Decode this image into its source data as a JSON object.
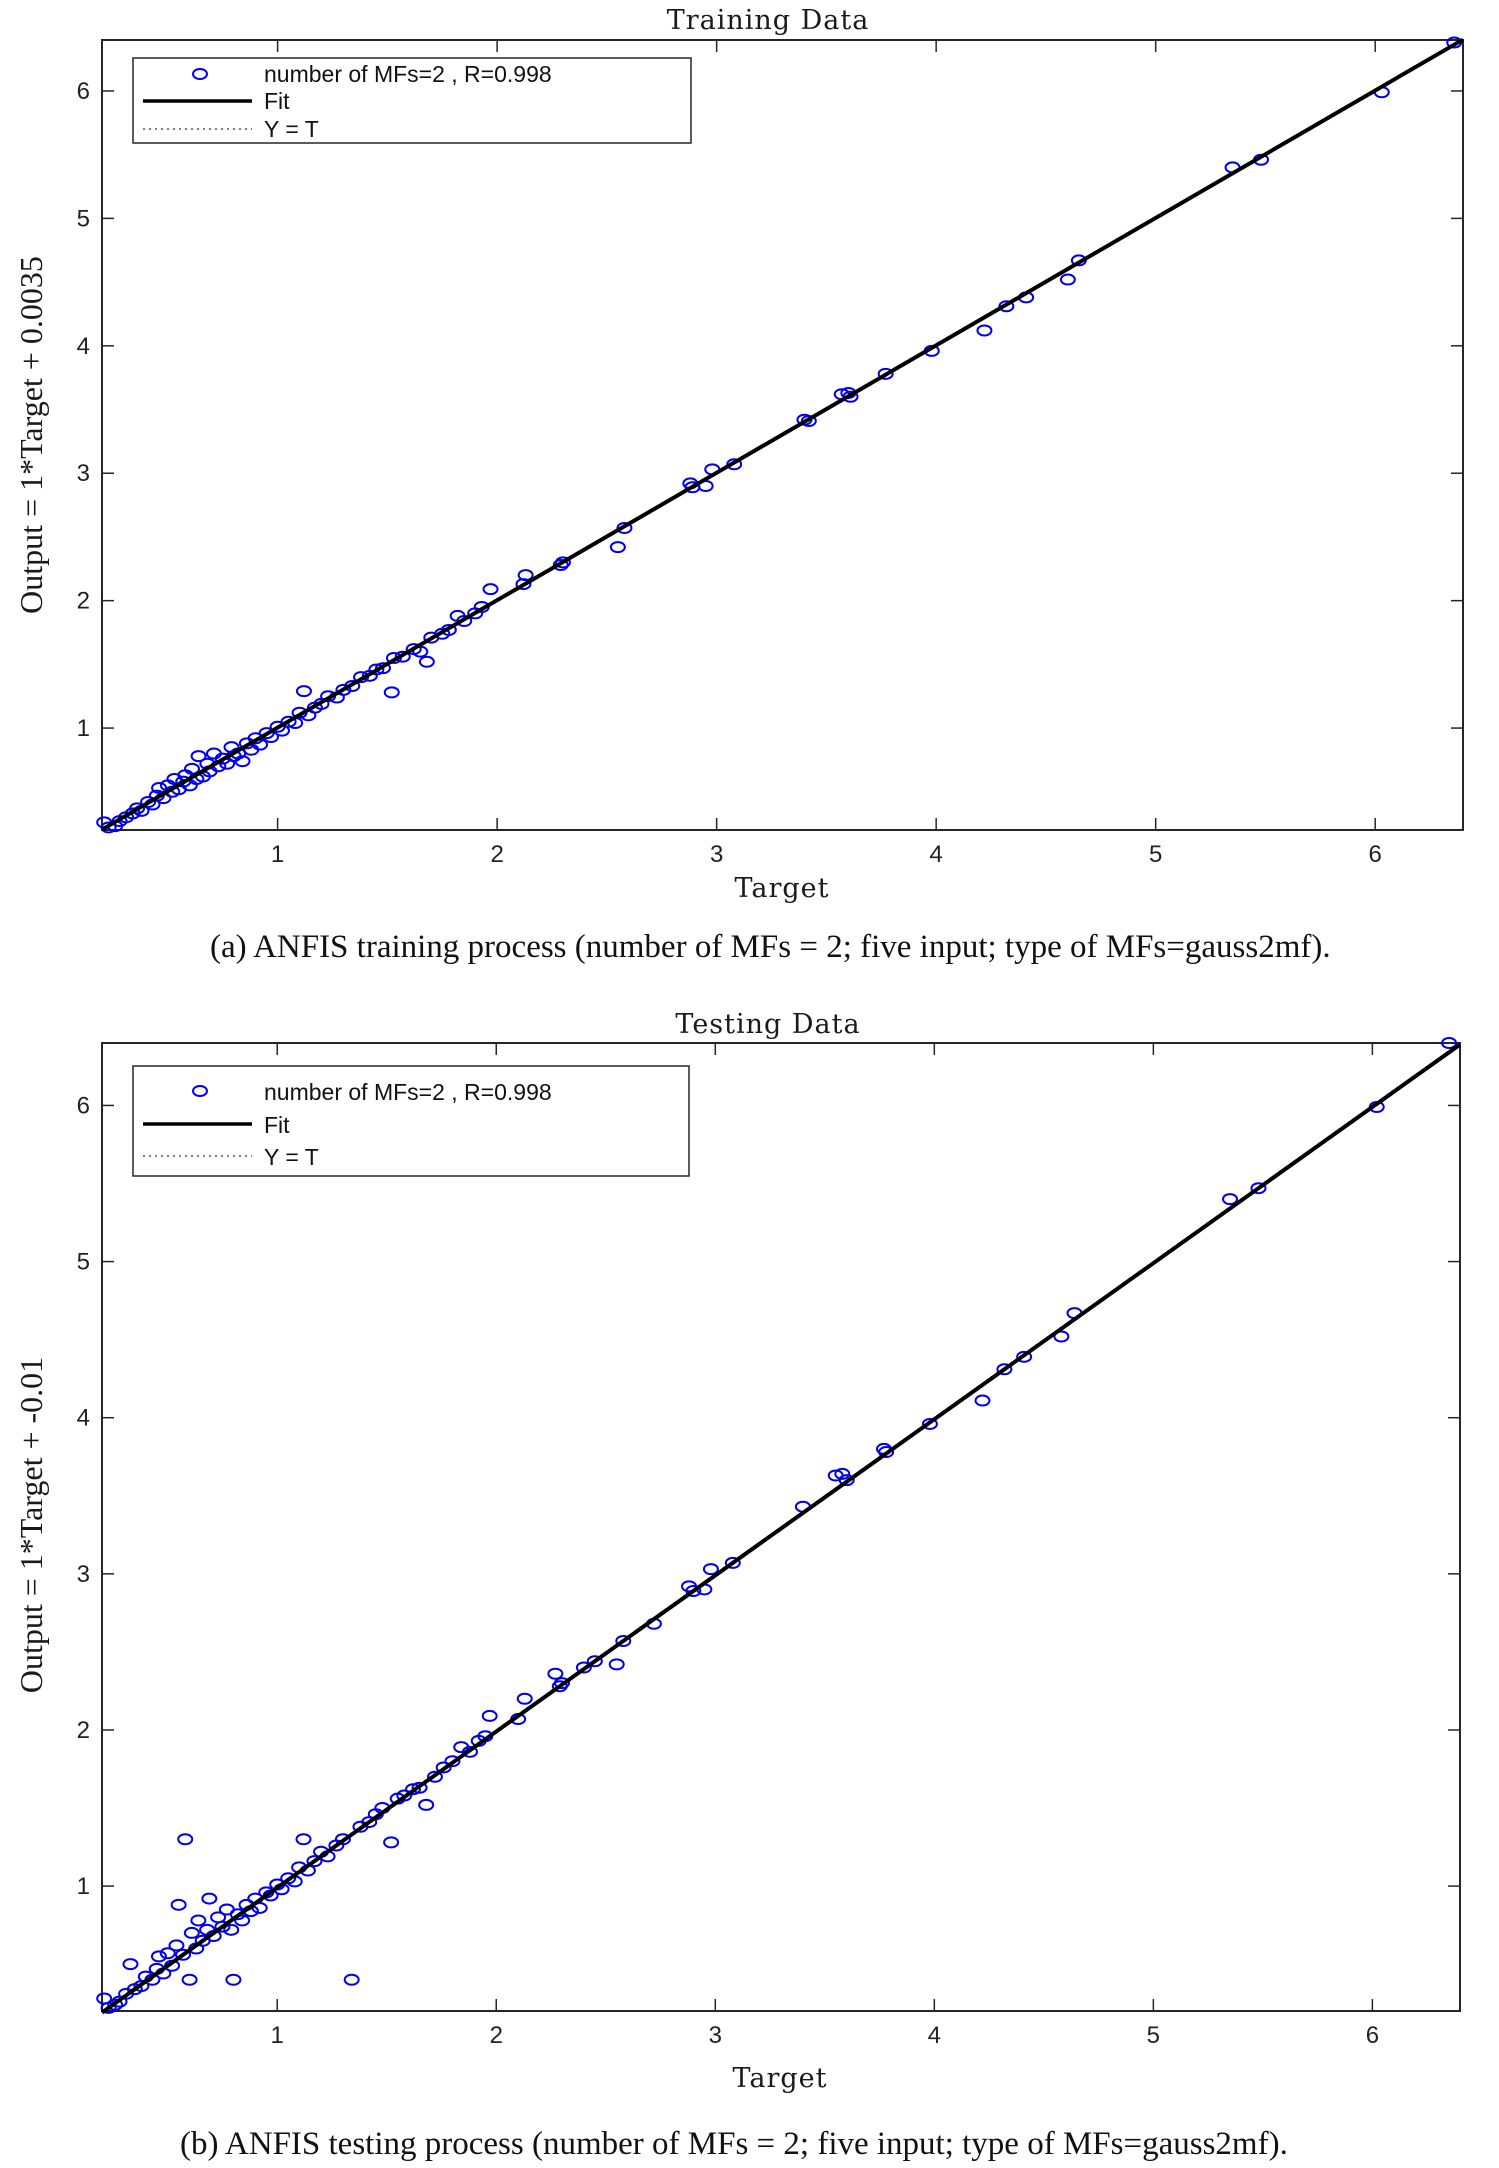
{
  "chart_data": [
    {
      "type": "scatter",
      "title": "Training Data",
      "xlabel": "Target",
      "ylabel": "Output  = 1*Target + 0.0035",
      "xlim": [
        0.2,
        6.4
      ],
      "ylim": [
        0.2,
        6.4
      ],
      "xticks": [
        1,
        2,
        3,
        4,
        5,
        6
      ],
      "yticks": [
        1,
        2,
        3,
        4,
        5,
        6
      ],
      "grid": false,
      "legend_position": "top-left",
      "legend": [
        "number of MFs=2 , R=0.998",
        "Fit",
        "Y = T"
      ],
      "fit": {
        "slope": 1,
        "intercept": 0.0035
      },
      "caption": "(a)  ANFIS training process (number of MFs = 2; five input; type of MFs=gauss2mf).",
      "series": [
        {
          "name": "number of MFs=2 , R=0.998",
          "color": "#0000ee",
          "points": [
            [
              0.21,
              0.26
            ],
            [
              0.23,
              0.22
            ],
            [
              0.26,
              0.23
            ],
            [
              0.28,
              0.27
            ],
            [
              0.31,
              0.3
            ],
            [
              0.34,
              0.33
            ],
            [
              0.36,
              0.37
            ],
            [
              0.38,
              0.35
            ],
            [
              0.41,
              0.42
            ],
            [
              0.43,
              0.4
            ],
            [
              0.45,
              0.47
            ],
            [
              0.46,
              0.53
            ],
            [
              0.48,
              0.45
            ],
            [
              0.5,
              0.55
            ],
            [
              0.52,
              0.5
            ],
            [
              0.53,
              0.6
            ],
            [
              0.55,
              0.52
            ],
            [
              0.57,
              0.58
            ],
            [
              0.58,
              0.63
            ],
            [
              0.6,
              0.55
            ],
            [
              0.61,
              0.68
            ],
            [
              0.63,
              0.6
            ],
            [
              0.64,
              0.78
            ],
            [
              0.66,
              0.62
            ],
            [
              0.68,
              0.72
            ],
            [
              0.69,
              0.66
            ],
            [
              0.71,
              0.8
            ],
            [
              0.73,
              0.7
            ],
            [
              0.75,
              0.76
            ],
            [
              0.77,
              0.72
            ],
            [
              0.79,
              0.85
            ],
            [
              0.8,
              0.78
            ],
            [
              0.82,
              0.8
            ],
            [
              0.84,
              0.74
            ],
            [
              0.86,
              0.88
            ],
            [
              0.88,
              0.83
            ],
            [
              0.9,
              0.92
            ],
            [
              0.92,
              0.87
            ],
            [
              0.95,
              0.96
            ],
            [
              0.97,
              0.93
            ],
            [
              1.0,
              1.01
            ],
            [
              1.02,
              0.98
            ],
            [
              1.05,
              1.05
            ],
            [
              1.08,
              1.04
            ],
            [
              1.1,
              1.12
            ],
            [
              1.12,
              1.29
            ],
            [
              1.14,
              1.1
            ],
            [
              1.17,
              1.16
            ],
            [
              1.2,
              1.19
            ],
            [
              1.23,
              1.25
            ],
            [
              1.27,
              1.24
            ],
            [
              1.3,
              1.3
            ],
            [
              1.34,
              1.33
            ],
            [
              1.38,
              1.4
            ],
            [
              1.42,
              1.41
            ],
            [
              1.45,
              1.46
            ],
            [
              1.48,
              1.47
            ],
            [
              1.52,
              1.28
            ],
            [
              1.53,
              1.55
            ],
            [
              1.57,
              1.56
            ],
            [
              1.62,
              1.62
            ],
            [
              1.65,
              1.6
            ],
            [
              1.68,
              1.52
            ],
            [
              1.7,
              1.71
            ],
            [
              1.75,
              1.74
            ],
            [
              1.78,
              1.77
            ],
            [
              1.82,
              1.88
            ],
            [
              1.85,
              1.84
            ],
            [
              1.9,
              1.9
            ],
            [
              1.93,
              1.95
            ],
            [
              1.97,
              2.09
            ],
            [
              2.12,
              2.13
            ],
            [
              2.13,
              2.2
            ],
            [
              2.29,
              2.28
            ],
            [
              2.3,
              2.3
            ],
            [
              2.55,
              2.42
            ],
            [
              2.58,
              2.57
            ],
            [
              2.88,
              2.92
            ],
            [
              2.89,
              2.89
            ],
            [
              2.95,
              2.9
            ],
            [
              2.98,
              3.03
            ],
            [
              3.08,
              3.07
            ],
            [
              3.4,
              3.42
            ],
            [
              3.42,
              3.41
            ],
            [
              3.57,
              3.62
            ],
            [
              3.6,
              3.63
            ],
            [
              3.61,
              3.6
            ],
            [
              3.77,
              3.78
            ],
            [
              3.98,
              3.96
            ],
            [
              4.22,
              4.12
            ],
            [
              4.32,
              4.31
            ],
            [
              4.41,
              4.38
            ],
            [
              4.6,
              4.52
            ],
            [
              4.65,
              4.67
            ],
            [
              5.35,
              5.4
            ],
            [
              5.48,
              5.46
            ],
            [
              6.03,
              5.99
            ],
            [
              6.36,
              6.38
            ]
          ]
        }
      ]
    },
    {
      "type": "scatter",
      "title": "Testing Data",
      "xlabel": "Target",
      "ylabel": "Output  = 1*Target + -0.01",
      "xlim": [
        0.2,
        6.4
      ],
      "ylim": [
        0.2,
        6.4
      ],
      "xticks": [
        1,
        2,
        3,
        4,
        5,
        6
      ],
      "yticks": [
        1,
        2,
        3,
        4,
        5,
        6
      ],
      "grid": false,
      "legend_position": "top-left",
      "legend": [
        "number of MFs=2 , R=0.998",
        "Fit",
        "Y = T"
      ],
      "fit": {
        "slope": 1,
        "intercept": -0.01
      },
      "caption": "(b)  ANFIS testing process (number of MFs = 2; five input; type of MFs=gauss2mf).",
      "series": [
        {
          "name": "number of MFs=2 , R=0.998",
          "color": "#0000ee",
          "points": [
            [
              0.21,
              0.28
            ],
            [
              0.23,
              0.22
            ],
            [
              0.26,
              0.24
            ],
            [
              0.28,
              0.26
            ],
            [
              0.31,
              0.31
            ],
            [
              0.33,
              0.5
            ],
            [
              0.35,
              0.34
            ],
            [
              0.38,
              0.36
            ],
            [
              0.4,
              0.42
            ],
            [
              0.43,
              0.4
            ],
            [
              0.45,
              0.47
            ],
            [
              0.46,
              0.55
            ],
            [
              0.48,
              0.44
            ],
            [
              0.5,
              0.57
            ],
            [
              0.52,
              0.49
            ],
            [
              0.54,
              0.62
            ],
            [
              0.55,
              0.88
            ],
            [
              0.57,
              0.56
            ],
            [
              0.58,
              1.3
            ],
            [
              0.6,
              0.4
            ],
            [
              0.61,
              0.7
            ],
            [
              0.63,
              0.6
            ],
            [
              0.64,
              0.78
            ],
            [
              0.66,
              0.65
            ],
            [
              0.68,
              0.72
            ],
            [
              0.69,
              0.92
            ],
            [
              0.71,
              0.68
            ],
            [
              0.73,
              0.8
            ],
            [
              0.75,
              0.74
            ],
            [
              0.77,
              0.85
            ],
            [
              0.79,
              0.72
            ],
            [
              0.8,
              0.4
            ],
            [
              0.82,
              0.82
            ],
            [
              0.84,
              0.78
            ],
            [
              0.86,
              0.88
            ],
            [
              0.88,
              0.84
            ],
            [
              0.9,
              0.92
            ],
            [
              0.92,
              0.86
            ],
            [
              0.95,
              0.96
            ],
            [
              0.97,
              0.94
            ],
            [
              1.0,
              1.01
            ],
            [
              1.02,
              0.98
            ],
            [
              1.05,
              1.05
            ],
            [
              1.08,
              1.03
            ],
            [
              1.1,
              1.12
            ],
            [
              1.12,
              1.3
            ],
            [
              1.14,
              1.1
            ],
            [
              1.17,
              1.16
            ],
            [
              1.2,
              1.22
            ],
            [
              1.23,
              1.19
            ],
            [
              1.27,
              1.26
            ],
            [
              1.3,
              1.3
            ],
            [
              1.34,
              0.4
            ],
            [
              1.38,
              1.38
            ],
            [
              1.42,
              1.41
            ],
            [
              1.45,
              1.46
            ],
            [
              1.48,
              1.5
            ],
            [
              1.52,
              1.28
            ],
            [
              1.55,
              1.56
            ],
            [
              1.58,
              1.58
            ],
            [
              1.62,
              1.62
            ],
            [
              1.65,
              1.63
            ],
            [
              1.68,
              1.52
            ],
            [
              1.72,
              1.7
            ],
            [
              1.76,
              1.76
            ],
            [
              1.8,
              1.8
            ],
            [
              1.84,
              1.89
            ],
            [
              1.88,
              1.86
            ],
            [
              1.92,
              1.93
            ],
            [
              1.95,
              1.96
            ],
            [
              1.97,
              2.09
            ],
            [
              2.1,
              2.07
            ],
            [
              2.13,
              2.2
            ],
            [
              2.27,
              2.36
            ],
            [
              2.29,
              2.28
            ],
            [
              2.3,
              2.3
            ],
            [
              2.4,
              2.4
            ],
            [
              2.45,
              2.44
            ],
            [
              2.55,
              2.42
            ],
            [
              2.58,
              2.57
            ],
            [
              2.72,
              2.68
            ],
            [
              2.88,
              2.92
            ],
            [
              2.9,
              2.89
            ],
            [
              2.95,
              2.9
            ],
            [
              2.98,
              3.03
            ],
            [
              3.08,
              3.07
            ],
            [
              3.4,
              3.43
            ],
            [
              3.55,
              3.63
            ],
            [
              3.58,
              3.64
            ],
            [
              3.6,
              3.6
            ],
            [
              3.77,
              3.8
            ],
            [
              3.78,
              3.78
            ],
            [
              3.98,
              3.96
            ],
            [
              4.22,
              4.11
            ],
            [
              4.32,
              4.31
            ],
            [
              4.41,
              4.39
            ],
            [
              4.58,
              4.52
            ],
            [
              4.64,
              4.67
            ],
            [
              5.35,
              5.4
            ],
            [
              5.48,
              5.47
            ],
            [
              6.02,
              5.99
            ],
            [
              6.35,
              6.4
            ]
          ]
        }
      ]
    }
  ]
}
